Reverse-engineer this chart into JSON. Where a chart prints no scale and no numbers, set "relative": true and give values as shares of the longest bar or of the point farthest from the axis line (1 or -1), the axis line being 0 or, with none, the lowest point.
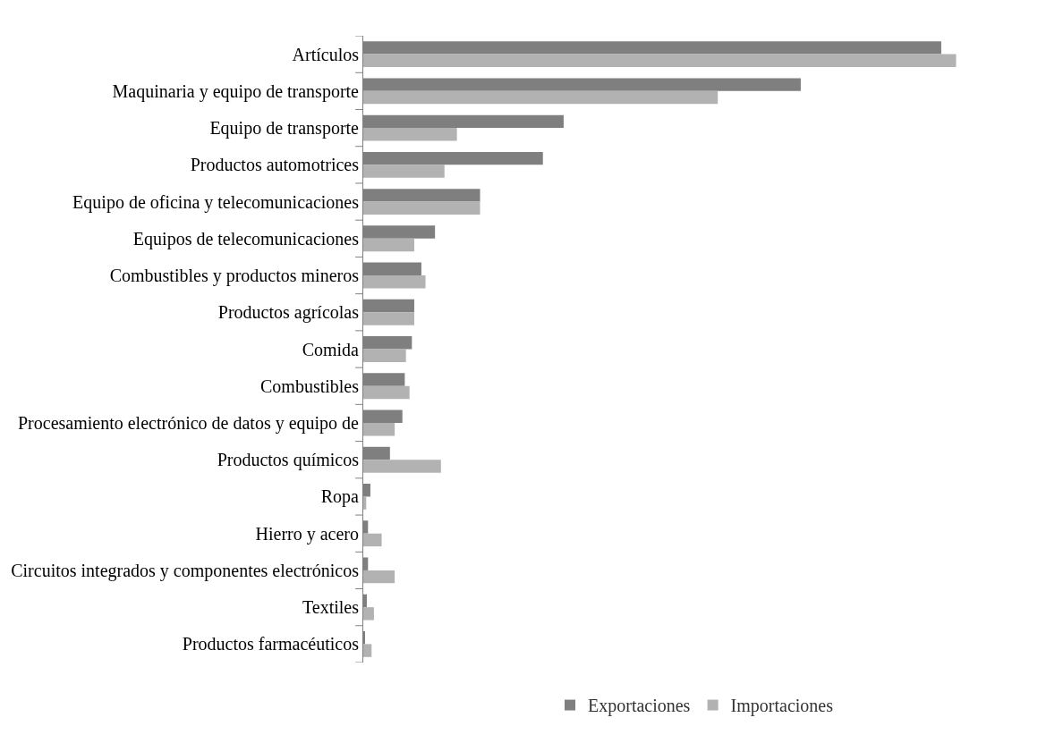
{
  "chart_data": {
    "type": "bar",
    "orientation": "horizontal",
    "relative": true,
    "legend": "bottom",
    "categories": [
      "Artículos",
      "Maquinaria y equipo de transporte",
      "Equipo de transporte",
      "Productos automotrices",
      "Equipo de oficina y telecomunicaciones",
      "Equipos de telecomunicaciones",
      "Combustibles y productos mineros",
      "Productos agrícolas",
      "Comida",
      "Combustibles",
      "Procesamiento electrónico de datos y equipo de",
      "Productos químicos",
      "Ropa",
      "Hierro y acero",
      "Circuitos integrados y componentes electrónicos",
      "Textiles",
      "Productos farmacéuticos"
    ],
    "series": [
      {
        "name": "Exportaciones",
        "color": "#7f7f7f",
        "values": [
          0.975,
          0.738,
          0.338,
          0.303,
          0.197,
          0.121,
          0.098,
          0.086,
          0.082,
          0.07,
          0.066,
          0.045,
          0.012,
          0.008,
          0.008,
          0.006,
          0.002
        ]
      },
      {
        "name": "Importaciones",
        "color": "#b2b2b2",
        "values": [
          1.0,
          0.598,
          0.158,
          0.137,
          0.197,
          0.086,
          0.105,
          0.086,
          0.072,
          0.078,
          0.053,
          0.131,
          0.005,
          0.031,
          0.053,
          0.018,
          0.014
        ]
      }
    ]
  }
}
